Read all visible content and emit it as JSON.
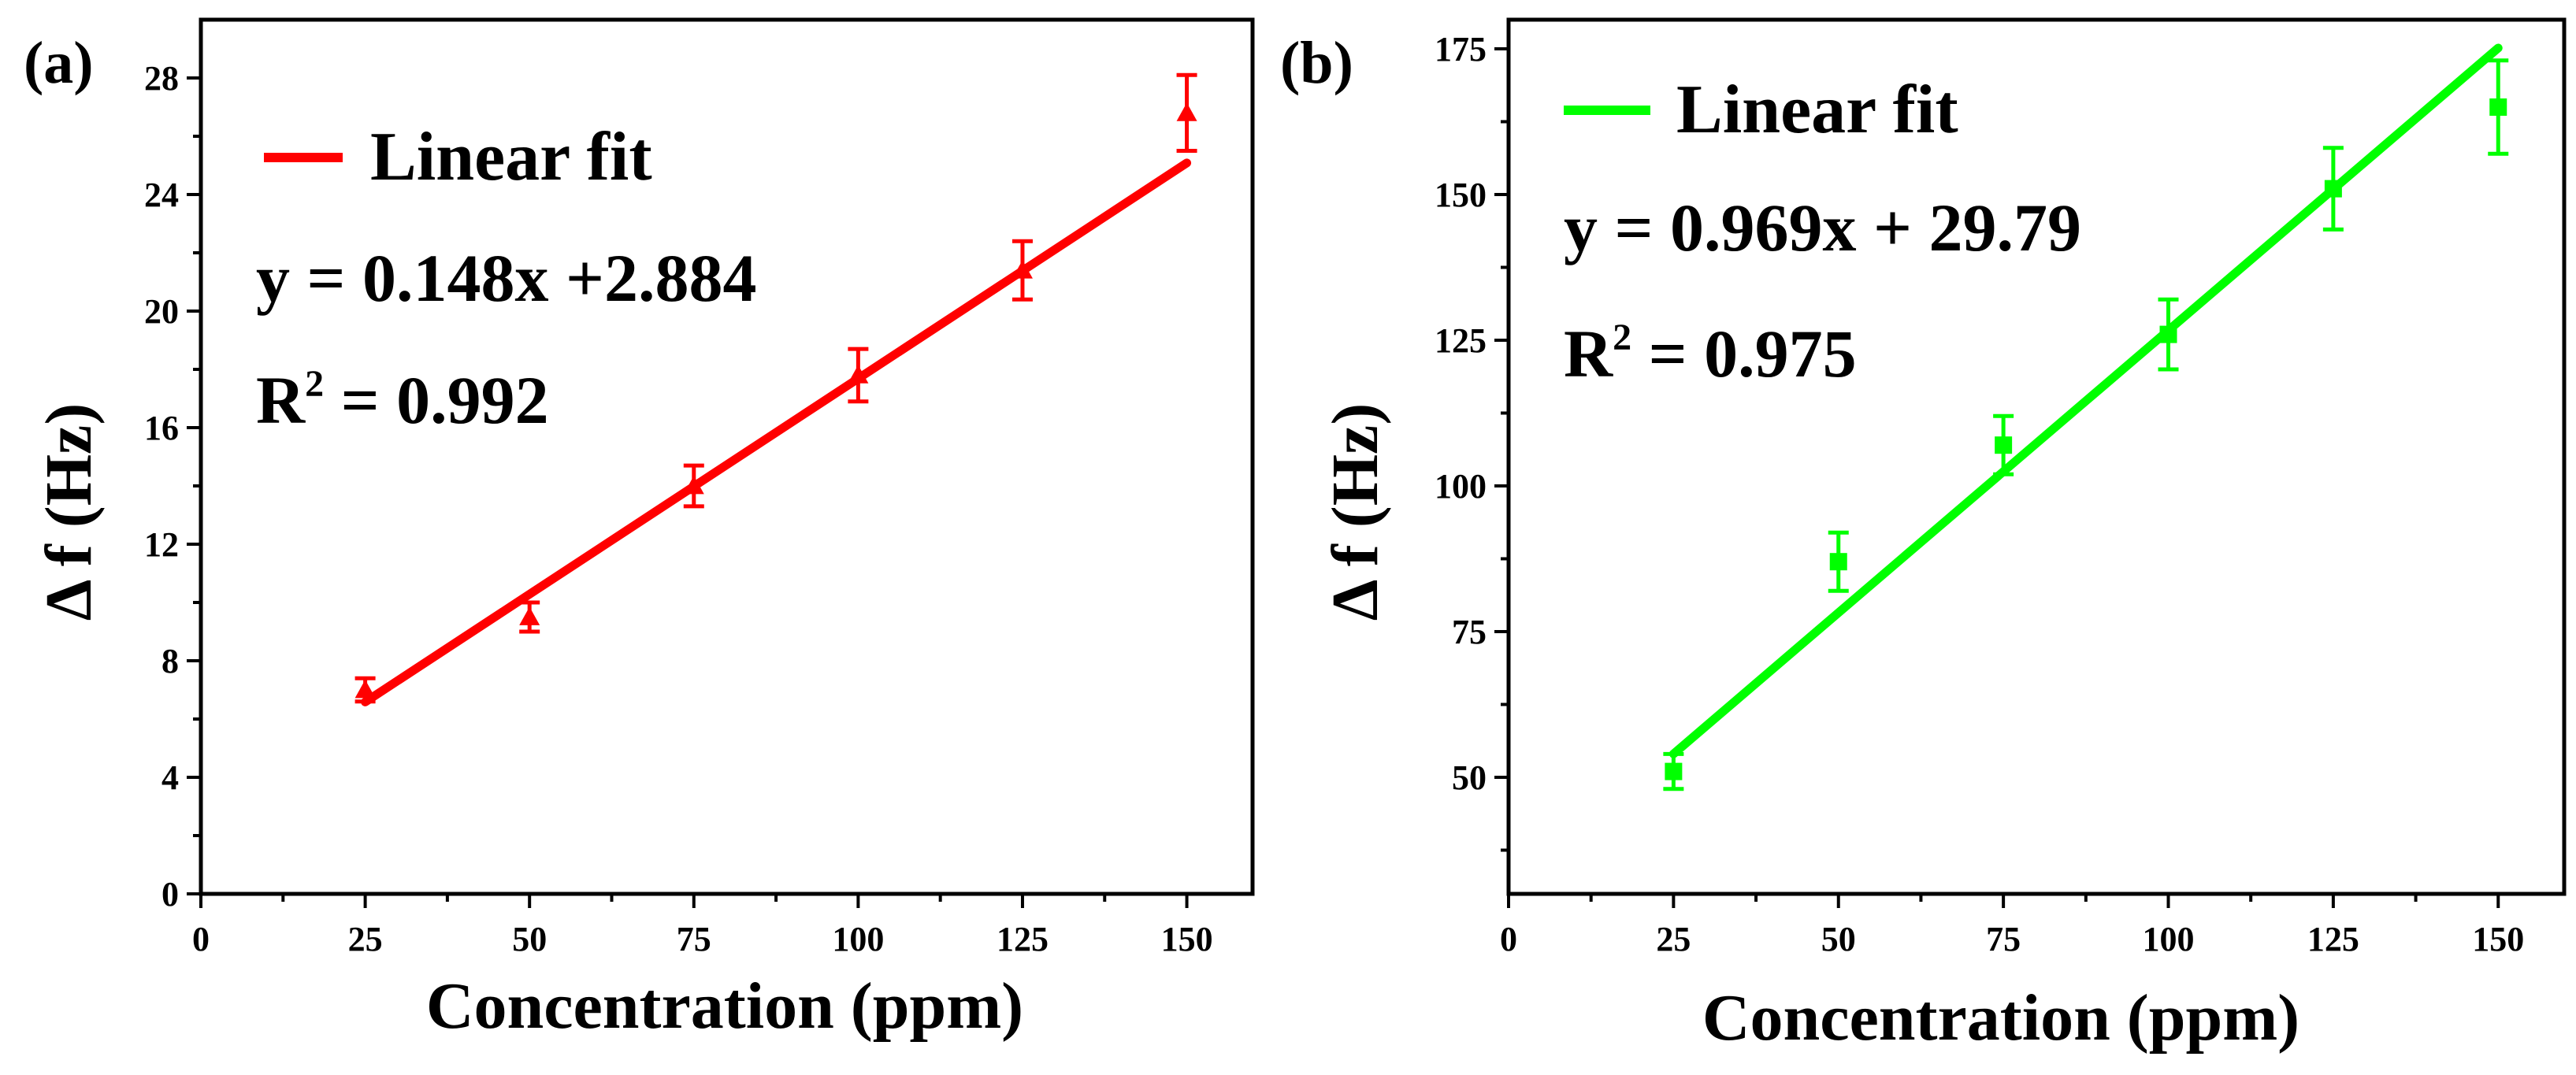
{
  "figure": {
    "background": "#ffffff"
  },
  "chart_data": [
    {
      "panel_label": "(a)",
      "type": "scatter",
      "color": "#ff0000",
      "marker": "triangle",
      "xlabel": "Concentration (ppm)",
      "ylabel": "Δ f (Hz)",
      "xlim": [
        0,
        160
      ],
      "ylim": [
        0,
        30
      ],
      "xticks": [
        0,
        25,
        50,
        75,
        100,
        125,
        150
      ],
      "yticks": [
        0,
        4,
        8,
        12,
        16,
        20,
        24,
        28
      ],
      "x": [
        25,
        50,
        75,
        100,
        125,
        150
      ],
      "y": [
        7.0,
        9.5,
        14.0,
        17.8,
        21.4,
        26.8
      ],
      "yerr": [
        0.4,
        0.5,
        0.7,
        0.9,
        1.0,
        1.3
      ],
      "fit": {
        "slope": 0.148,
        "intercept": 2.884,
        "x_start": 25,
        "x_end": 150
      },
      "legend_label": "Linear fit",
      "equation": "y = 0.148x +2.884",
      "r2": {
        "prefix": "R",
        "sup": "2",
        "text": " = 0.992"
      }
    },
    {
      "panel_label": "(b)",
      "type": "scatter",
      "color": "#00ff00",
      "marker": "square",
      "xlabel": "Concentration (ppm)",
      "ylabel": "Δ f (Hz)",
      "xlim": [
        0,
        160
      ],
      "ylim": [
        30,
        180
      ],
      "xticks": [
        0,
        25,
        50,
        75,
        100,
        125,
        150
      ],
      "yticks": [
        50,
        75,
        100,
        125,
        150,
        175
      ],
      "x": [
        25,
        50,
        75,
        100,
        125,
        150
      ],
      "y": [
        51,
        87,
        107,
        126,
        151,
        165
      ],
      "yerr": [
        3,
        5,
        5,
        6,
        7,
        8
      ],
      "fit": {
        "slope": 0.969,
        "intercept": 29.79,
        "x_start": 25,
        "x_end": 150
      },
      "legend_label": "Linear fit",
      "equation": "y = 0.969x + 29.79",
      "r2": {
        "prefix": "R",
        "sup": "2",
        "text": " = 0.975"
      }
    }
  ]
}
